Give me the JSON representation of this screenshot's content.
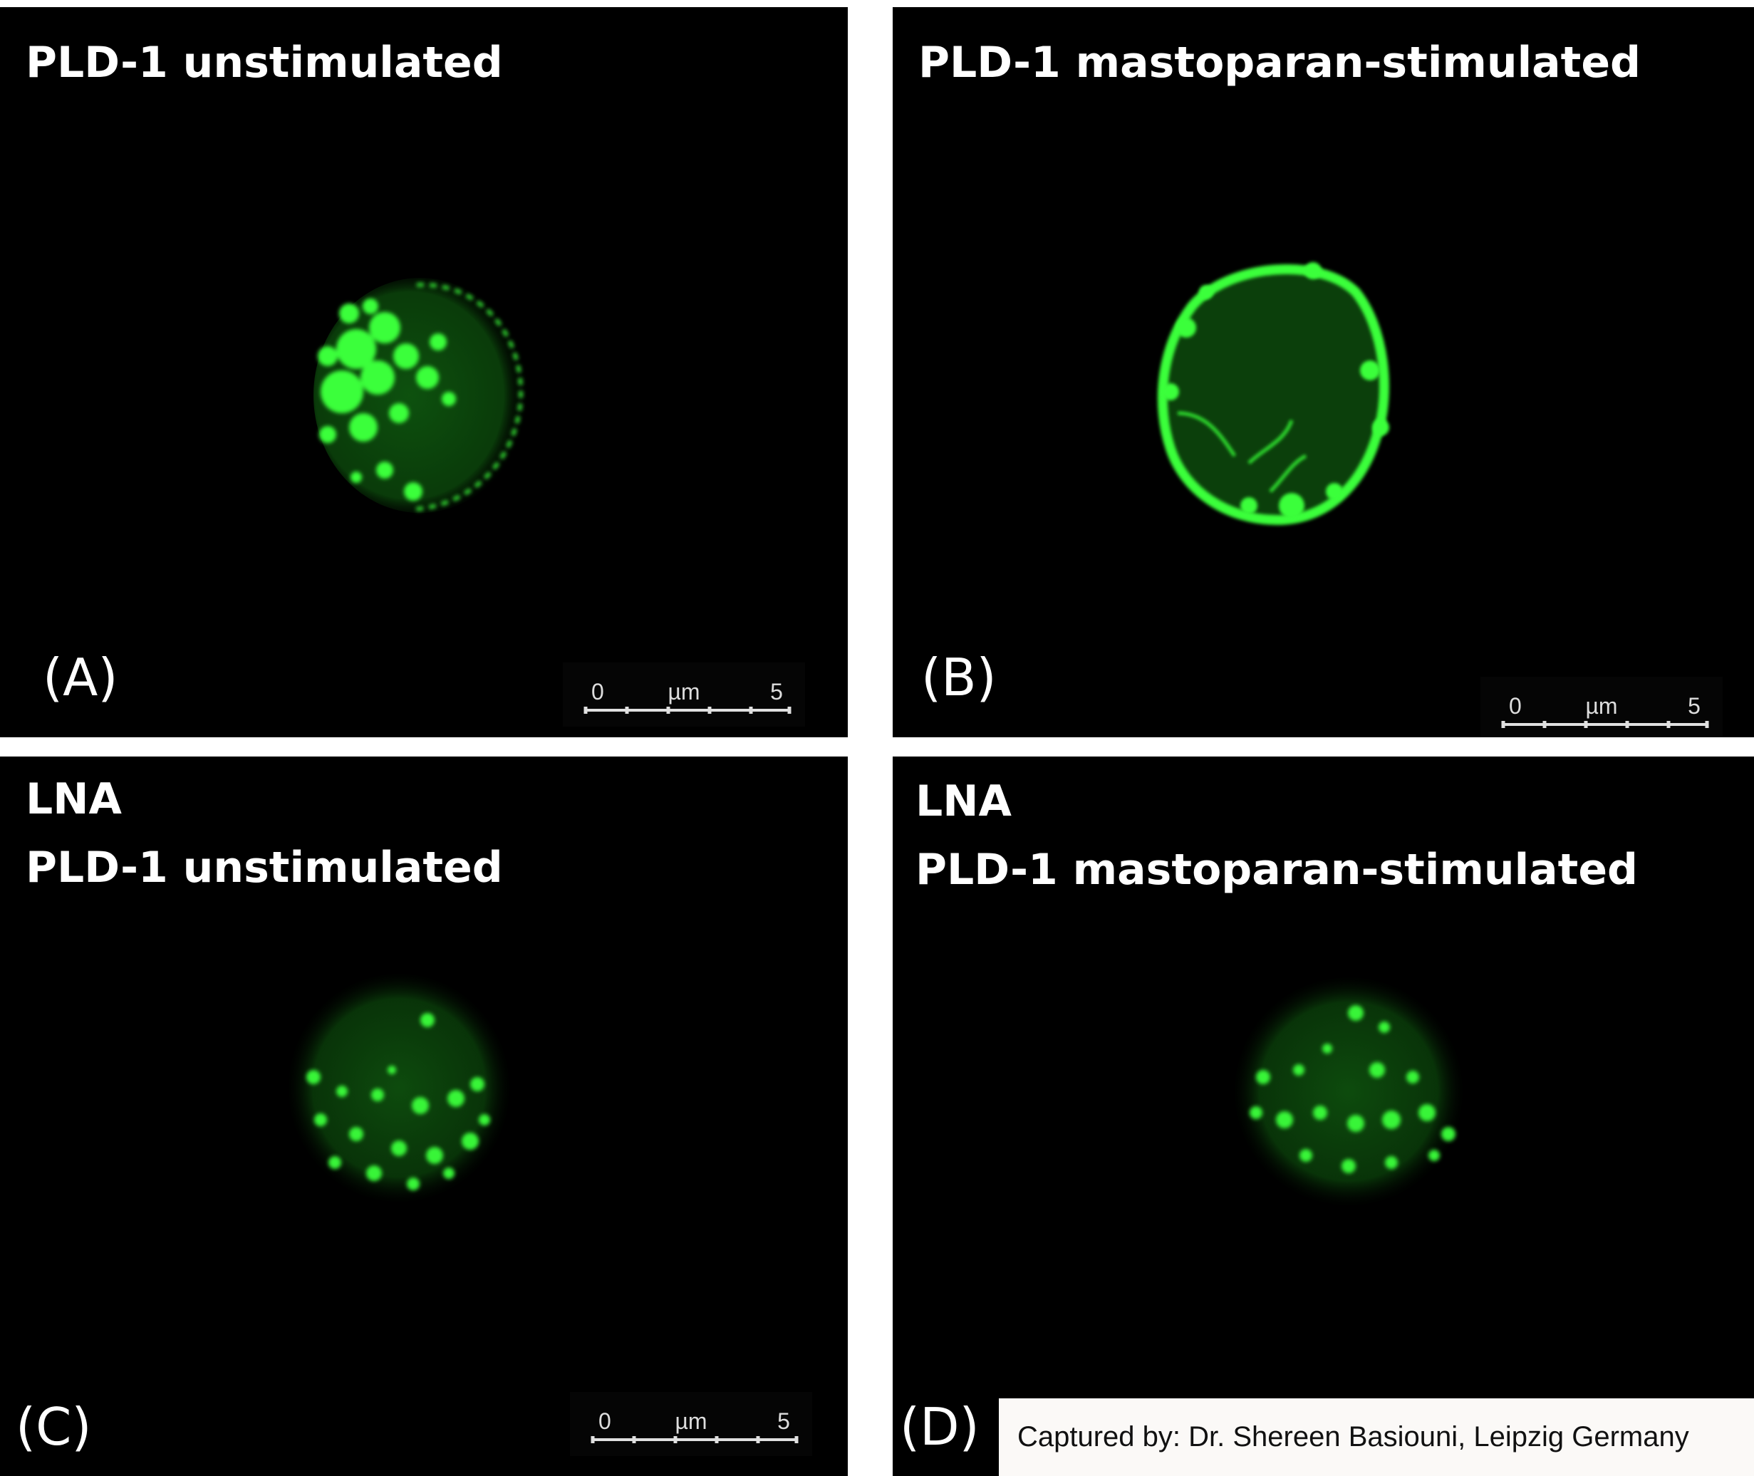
{
  "figure": {
    "panels": [
      {
        "id": "A",
        "letter": "(A)",
        "title_lines": [
          "PLD-1 unstimulated"
        ]
      },
      {
        "id": "B",
        "letter": "(B)",
        "title_lines": [
          "PLD-1  mastoparan-stimulated"
        ]
      },
      {
        "id": "C",
        "letter": "(C)",
        "title_lines": [
          "LNA",
          "PLD-1  unstimulated"
        ]
      },
      {
        "id": "D",
        "letter": "(D)",
        "title_lines": [
          "LNA",
          "PLD-1 mastoparan-stimulated"
        ]
      }
    ],
    "scale_bar": {
      "start": "0",
      "unit": "µm",
      "end": "5"
    },
    "credit": "Captured by: Dr. Shereen Basiouni, Leipzig Germany",
    "colors": {
      "background": "#000000",
      "fluorescence": "#33ff33",
      "text": "#ffffff"
    }
  }
}
